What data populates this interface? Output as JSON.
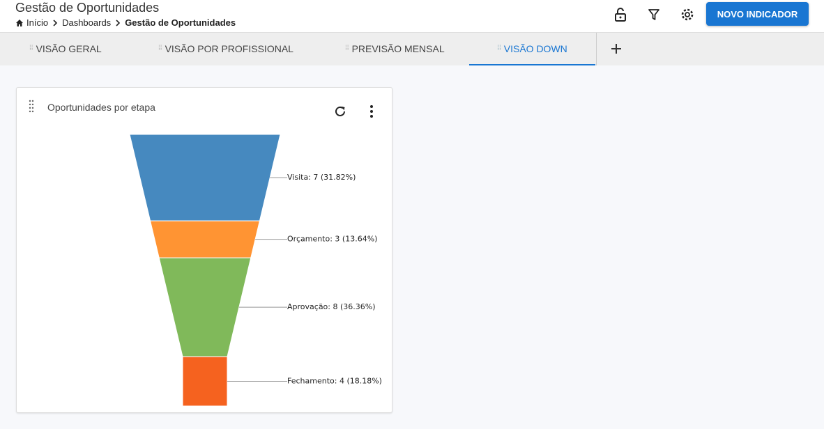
{
  "header": {
    "title": "Gestão de Oportunidades",
    "breadcrumb": [
      "Início",
      "Dashboards",
      "Gestão de Oportunidades"
    ],
    "button": "NOVO INDICADOR"
  },
  "tabs": [
    "VISÃO GERAL",
    "VISÃO POR PROFISSIONAL",
    "PREVISÃO MENSAL",
    "VISÃO DOWN"
  ],
  "card": {
    "title": "Oportunidades por etapa"
  },
  "chart_data": {
    "type": "funnel",
    "categories": [
      "Visita",
      "Orçamento",
      "Aprovação",
      "Fechamento"
    ],
    "values": [
      7,
      3,
      8,
      4
    ],
    "value_labels": [
      "Visita: 7 (31.82%)",
      "Orçamento: 3 (13.64%)",
      "Aprovação: 8 (36.36%)",
      "Fechamento: 4 (18.18%)"
    ],
    "colors": [
      "#4689bf",
      "#ff9433",
      "#80b95a",
      "#f5621f"
    ]
  }
}
